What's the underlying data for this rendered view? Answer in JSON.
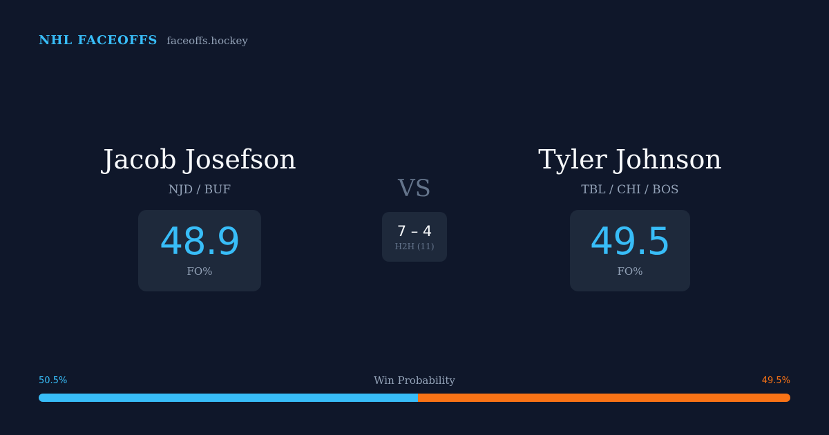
{
  "brand": {
    "title": "NHL FACEOFFS",
    "domain": "faceoffs.hockey"
  },
  "players": {
    "left": {
      "name": "Jacob Josefson",
      "teams": "NJD / BUF",
      "fo_value": "48.9",
      "fo_label": "FO%"
    },
    "right": {
      "name": "Tyler Johnson",
      "teams": "TBL / CHI / BOS",
      "fo_value": "49.5",
      "fo_label": "FO%"
    }
  },
  "vs": {
    "text": "VS",
    "h2h_score": "7 – 4",
    "h2h_label": "H2H (11)"
  },
  "win_probability": {
    "title": "Win Probability",
    "left_label": "50.5%",
    "right_label": "49.5%",
    "left_fraction": 0.505,
    "left_color": "#38bdf8",
    "right_color": "#f97316"
  }
}
